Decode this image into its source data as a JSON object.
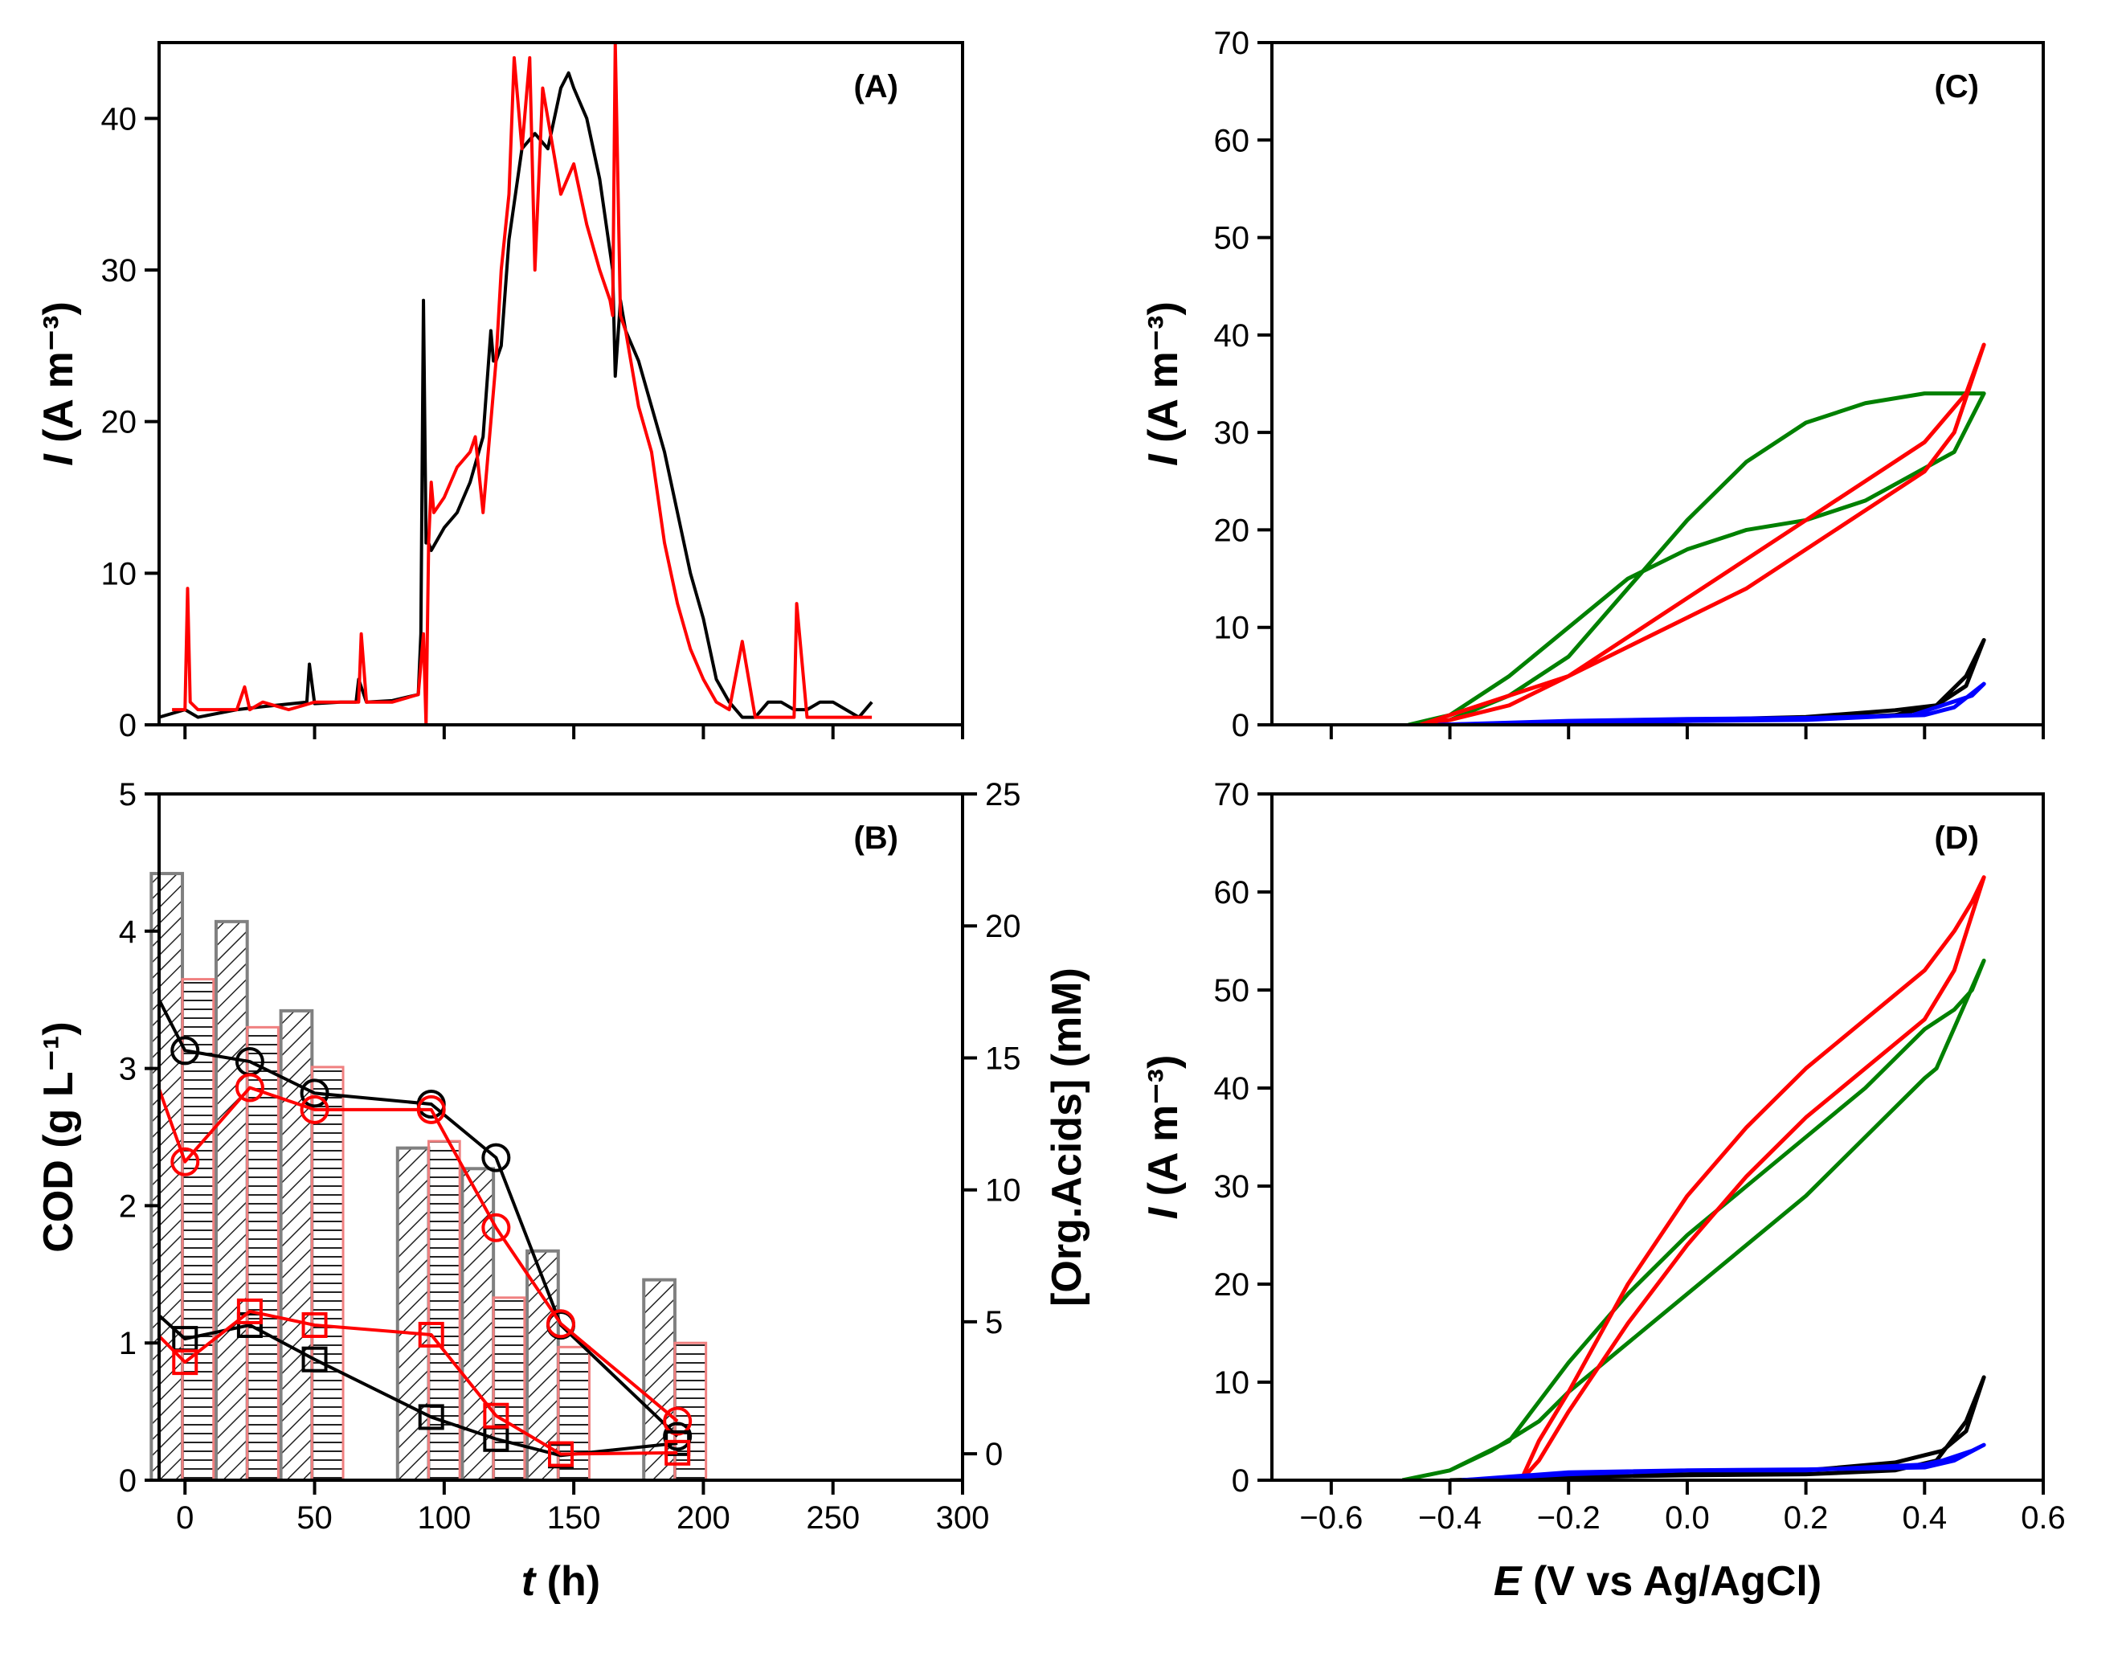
{
  "colors": {
    "black": "#000000",
    "red": "#ff0000",
    "green": "#008000",
    "blue": "#0000ff",
    "grey": "#808080",
    "lightred": "#f08080"
  },
  "chart_data": [
    {
      "panel": "(A)",
      "type": "line",
      "xlim": [
        -10,
        300
      ],
      "ylim": [
        0,
        45
      ],
      "yticks": [
        0,
        10,
        20,
        30,
        40
      ],
      "ylabel_italic": "I",
      "ylabel": " (A m⁻³)",
      "series": [
        {
          "color": "#000000",
          "x": [
            -10,
            0,
            5,
            20,
            30,
            47,
            48,
            50,
            60,
            66,
            67,
            70,
            80,
            90,
            91,
            92,
            93,
            94,
            95,
            100,
            105,
            110,
            115,
            118,
            119,
            120,
            122,
            125,
            130,
            135,
            140,
            145,
            148,
            150,
            155,
            160,
            165,
            166,
            168,
            170,
            175,
            180,
            185,
            190,
            195,
            200,
            205,
            210,
            215,
            220,
            225,
            230,
            235,
            240,
            245,
            250,
            255,
            260,
            265
          ],
          "y": [
            0.5,
            1,
            0.5,
            1,
            1.2,
            1.5,
            4,
            1.4,
            1.5,
            1.5,
            3,
            1.5,
            1.6,
            2,
            6,
            28,
            12,
            12,
            11.5,
            13,
            14,
            16,
            19,
            26,
            24,
            24,
            25,
            32,
            38,
            39,
            38,
            42,
            43,
            42,
            40,
            36,
            30,
            23,
            28,
            26,
            24,
            21,
            18,
            14,
            10,
            7,
            3,
            1.5,
            0.5,
            0.5,
            1.5,
            1.5,
            1,
            1,
            1.5,
            1.5,
            1,
            0.5,
            1.5
          ]
        },
        {
          "color": "#ff0000",
          "x": [
            -5,
            0,
            1,
            2,
            5,
            10,
            20,
            23,
            25,
            30,
            40,
            50,
            60,
            67,
            68,
            70,
            80,
            90,
            92,
            93,
            94,
            95,
            96,
            100,
            105,
            110,
            112,
            115,
            118,
            120,
            122,
            125,
            127,
            130,
            133,
            135,
            138,
            140,
            145,
            150,
            155,
            160,
            164,
            165,
            166,
            168,
            170,
            172,
            175,
            180,
            185,
            190,
            195,
            200,
            205,
            210,
            215,
            220,
            230,
            235,
            236,
            240,
            250,
            255,
            260,
            265
          ],
          "y": [
            1,
            1,
            9,
            1.5,
            1,
            1,
            1,
            2.5,
            1,
            1.5,
            1,
            1.5,
            1.5,
            1.5,
            6,
            1.5,
            1.5,
            2,
            6,
            0,
            12,
            16,
            14,
            15,
            17,
            18,
            19,
            14,
            20,
            24,
            30,
            35,
            44,
            38,
            44,
            30,
            42,
            40,
            35,
            37,
            33,
            30,
            28,
            27,
            45,
            27,
            26,
            24,
            21,
            18,
            12,
            8,
            5,
            3,
            1.5,
            1,
            5.5,
            0.5,
            0.5,
            0.5,
            8,
            0.5,
            0.5,
            0.5,
            0.5,
            0.5
          ]
        }
      ]
    },
    {
      "panel": "(B)",
      "type": "bar+line",
      "xlim": [
        -10,
        300
      ],
      "xticks": [
        0,
        50,
        100,
        150,
        200,
        250,
        300
      ],
      "xlabel_italic": "t",
      "xlabel": " (h)",
      "ylim": [
        0,
        5
      ],
      "yticks": [
        0,
        1,
        2,
        3,
        4,
        5
      ],
      "ylabel": "COD (g L⁻¹)",
      "y2lim": [
        -1,
        25
      ],
      "y2ticks": [
        0,
        5,
        10,
        15,
        20,
        25
      ],
      "y2label": "[Org.Acids] (mM)",
      "bars_grey_hatched": {
        "x": [
          0,
          25,
          50,
          95,
          120,
          145,
          190
        ],
        "values": [
          4.42,
          4.07,
          3.42,
          2.42,
          2.27,
          1.67,
          1.46
        ]
      },
      "bars_red_hlines": {
        "x": [
          0,
          25,
          50,
          95,
          120,
          145,
          190
        ],
        "values": [
          3.65,
          3.3,
          3.01,
          2.47,
          1.33,
          0.97,
          1.0
        ]
      },
      "series": [
        {
          "color": "#000000",
          "marker": "circle",
          "x": [
            -10,
            0,
            25,
            50,
            95,
            120,
            145,
            190
          ],
          "y": [
            3.5,
            3.13,
            3.05,
            2.82,
            2.74,
            2.35,
            1.13,
            0.32
          ]
        },
        {
          "color": "#ff0000",
          "marker": "circle",
          "x": [
            -10,
            0,
            25,
            50,
            95,
            120,
            145,
            190
          ],
          "y": [
            2.85,
            2.32,
            2.86,
            2.7,
            2.7,
            1.84,
            1.14,
            0.43
          ]
        },
        {
          "color": "#000000",
          "marker": "square",
          "x": [
            -10,
            0,
            25,
            50,
            95,
            120,
            145,
            190
          ],
          "y": [
            1.2,
            1.03,
            1.13,
            0.88,
            0.46,
            0.3,
            0.18,
            0.27
          ]
        },
        {
          "color": "#ff0000",
          "marker": "square",
          "x": [
            -10,
            0,
            25,
            50,
            95,
            120,
            145,
            190
          ],
          "y": [
            1.05,
            0.86,
            1.23,
            1.13,
            1.06,
            0.47,
            0.19,
            0.2
          ]
        }
      ]
    },
    {
      "panel": "(C)",
      "type": "line",
      "xlim": [
        -0.7,
        0.6
      ],
      "ylim": [
        0,
        70
      ],
      "yticks": [
        0,
        10,
        20,
        30,
        40,
        50,
        60,
        70
      ],
      "ylabel_italic": "I",
      "ylabel": " (A m⁻³)",
      "series": [
        {
          "color": "#008000",
          "x": [
            -0.47,
            -0.4,
            -0.3,
            -0.2,
            -0.1,
            0,
            0.1,
            0.2,
            0.3,
            0.36,
            0.45,
            0.5,
            0.5,
            0.48,
            0.45,
            0.4,
            0.3,
            0.2,
            0.1,
            0,
            -0.1,
            -0.2,
            -0.3,
            -0.4,
            -0.47
          ],
          "y": [
            0,
            1,
            5,
            10,
            15,
            18,
            20,
            21,
            23,
            25,
            28,
            34,
            34,
            34,
            34,
            34,
            33,
            31,
            27,
            21,
            14,
            7,
            3,
            0.5,
            0
          ]
        },
        {
          "color": "#ff0000",
          "x": [
            -0.45,
            -0.4,
            -0.3,
            -0.2,
            -0.1,
            0,
            0.1,
            0.2,
            0.3,
            0.4,
            0.45,
            0.5,
            0.47,
            0.4,
            0.3,
            0.2,
            0.1,
            0,
            -0.1,
            -0.2,
            -0.3,
            -0.4,
            -0.45
          ],
          "y": [
            0,
            1,
            3,
            5,
            8,
            11,
            14,
            18,
            22,
            26,
            30,
            39,
            34,
            29,
            25,
            21,
            17,
            13,
            9,
            5,
            2,
            0.5,
            0
          ]
        },
        {
          "color": "#000000",
          "x": [
            -0.42,
            -0.2,
            0,
            0.2,
            0.35,
            0.42,
            0.47,
            0.5,
            0.47,
            0.42,
            0.35,
            0.2,
            0,
            -0.2,
            -0.42
          ],
          "y": [
            0,
            0.2,
            0.4,
            0.6,
            1,
            2,
            5,
            8.7,
            4,
            2,
            1.5,
            0.8,
            0.5,
            0.3,
            0
          ]
        },
        {
          "color": "#0000ff",
          "x": [
            -0.42,
            -0.2,
            0,
            0.2,
            0.4,
            0.45,
            0.5,
            0.48,
            0.43,
            0.38,
            0.2,
            0,
            -0.2,
            -0.42
          ],
          "y": [
            0,
            0.4,
            0.6,
            0.7,
            1,
            1.8,
            4.2,
            3,
            2,
            1,
            0.5,
            0.4,
            0.2,
            0
          ]
        }
      ]
    },
    {
      "panel": "(D)",
      "type": "line",
      "xlim": [
        -0.7,
        0.6
      ],
      "xticks": [
        -0.6,
        -0.4,
        -0.2,
        0.0,
        0.2,
        0.4,
        0.6
      ],
      "xtick_labels": [
        "−0.6",
        "−0.4",
        "−0.2",
        "0.0",
        "0.2",
        "0.4",
        "0.6"
      ],
      "xlabel_italic": "E",
      "xlabel": " (V vs Ag/AgCl)",
      "ylim": [
        0,
        70
      ],
      "yticks": [
        0,
        10,
        20,
        30,
        40,
        50,
        60,
        70
      ],
      "ylabel_italic": "I",
      "ylabel": " (A m⁻³)",
      "series": [
        {
          "color": "#008000",
          "x": [
            -0.48,
            -0.4,
            -0.33,
            -0.25,
            -0.2,
            -0.1,
            0,
            0.1,
            0.2,
            0.3,
            0.4,
            0.42,
            0.5,
            0.48,
            0.45,
            0.4,
            0.3,
            0.2,
            0.1,
            0,
            -0.1,
            -0.2,
            -0.3,
            -0.4,
            -0.48
          ],
          "y": [
            0,
            1,
            3,
            6,
            9,
            14,
            19,
            24,
            29,
            35,
            41,
            42,
            53,
            50,
            48,
            46,
            40,
            35,
            30,
            25,
            19,
            12,
            4,
            1,
            0
          ]
        },
        {
          "color": "#ff0000",
          "x": [
            -0.28,
            -0.25,
            -0.2,
            -0.1,
            0,
            0.1,
            0.2,
            0.3,
            0.4,
            0.45,
            0.5,
            0.48,
            0.45,
            0.4,
            0.3,
            0.2,
            0.1,
            0,
            -0.1,
            -0.2,
            -0.25,
            -0.28
          ],
          "y": [
            0,
            2,
            7,
            16,
            24,
            31,
            37,
            42,
            47,
            52,
            61.5,
            59,
            56,
            52,
            47,
            42,
            36,
            29,
            20,
            9,
            4,
            0
          ]
        },
        {
          "color": "#000000",
          "x": [
            -0.4,
            -0.2,
            0,
            0.2,
            0.35,
            0.42,
            0.47,
            0.5,
            0.47,
            0.43,
            0.35,
            0.2,
            0,
            -0.2,
            -0.4
          ],
          "y": [
            0,
            0.3,
            0.5,
            0.6,
            1,
            2,
            6,
            10.5,
            5,
            3,
            1.8,
            1,
            0.6,
            0.3,
            0
          ]
        },
        {
          "color": "#0000ff",
          "x": [
            -0.38,
            -0.2,
            0,
            0.2,
            0.4,
            0.45,
            0.5,
            0.48,
            0.43,
            0.4,
            0.2,
            0,
            -0.2,
            -0.38
          ],
          "y": [
            0,
            0.8,
            1,
            1.1,
            1.3,
            2,
            3.6,
            3,
            2,
            1.6,
            1,
            1,
            0.6,
            0
          ]
        }
      ]
    }
  ]
}
